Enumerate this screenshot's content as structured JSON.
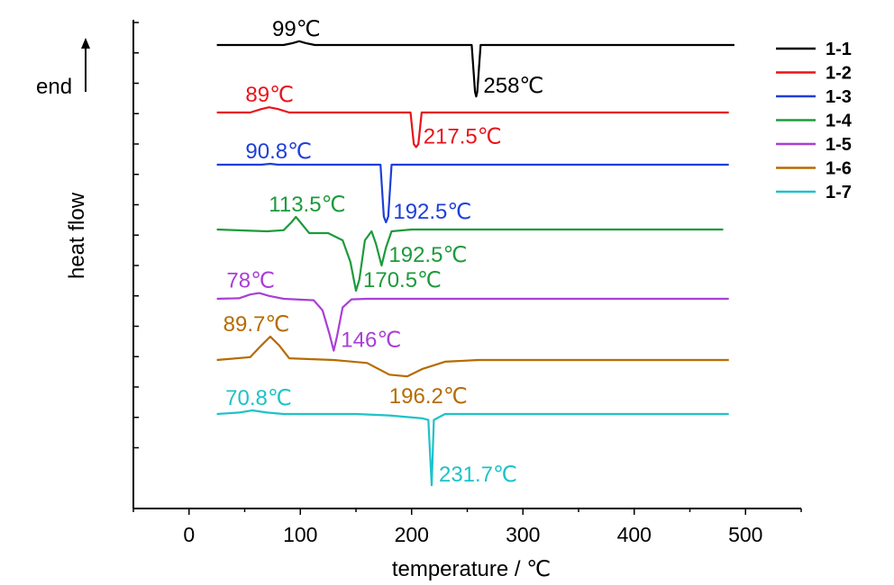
{
  "chart_data": {
    "type": "line",
    "title": "",
    "xlabel": "temperature / ℃",
    "ylabel": "heat flow",
    "direction_label": "end",
    "xlim": [
      -50,
      550
    ],
    "x_ticks": [
      0,
      100,
      200,
      300,
      400,
      500
    ],
    "grid": false,
    "legend_position": "top-right",
    "series": [
      {
        "name": "1-1",
        "color": "#000000",
        "points": [
          [
            25,
            0
          ],
          [
            85,
            0
          ],
          [
            93,
            0.04
          ],
          [
            99,
            0.08
          ],
          [
            105,
            0.04
          ],
          [
            113,
            0
          ],
          [
            254,
            0
          ],
          [
            257,
            -1.0
          ],
          [
            258,
            -1.1
          ],
          [
            259,
            -1.0
          ],
          [
            262,
            0
          ],
          [
            490,
            0
          ]
        ],
        "annotations": [
          {
            "text": "99℃",
            "x": 99,
            "y": 0.08,
            "pos": "above"
          },
          {
            "text": "258℃",
            "x": 258,
            "y": -1.1,
            "pos": "right"
          }
        ]
      },
      {
        "name": "1-2",
        "color": "#e8141b",
        "points": [
          [
            25,
            0
          ],
          [
            55,
            0
          ],
          [
            65,
            0.12
          ],
          [
            72,
            0.18
          ],
          [
            80,
            0.12
          ],
          [
            90,
            0
          ],
          [
            199,
            0
          ],
          [
            202,
            -1.1
          ],
          [
            204,
            -1.2
          ],
          [
            206,
            -1.1
          ],
          [
            209,
            0
          ],
          [
            485,
            0
          ]
        ],
        "annotations": [
          {
            "text": "89℃",
            "x": 75,
            "y": 0.18,
            "pos": "above"
          },
          {
            "text": "217.5℃",
            "x": 204,
            "y": -1.2,
            "pos": "right"
          }
        ]
      },
      {
        "name": "1-3",
        "color": "#1f3fd8",
        "points": [
          [
            25,
            0
          ],
          [
            65,
            0
          ],
          [
            73,
            0.03
          ],
          [
            80,
            0
          ],
          [
            172,
            0
          ],
          [
            175,
            -1.8
          ],
          [
            177,
            -2.0
          ],
          [
            179,
            -1.8
          ],
          [
            182,
            0
          ],
          [
            485,
            0
          ]
        ],
        "annotations": [
          {
            "text": "90.8℃",
            "x": 75,
            "y": 0.03,
            "pos": "above"
          },
          {
            "text": "192.5℃",
            "x": 177,
            "y": -2.0,
            "pos": "right"
          }
        ]
      },
      {
        "name": "1-4",
        "color": "#1e9a3c",
        "points": [
          [
            25,
            0
          ],
          [
            70,
            -0.05
          ],
          [
            85,
            -0.02
          ],
          [
            92,
            0.2
          ],
          [
            96,
            0.35
          ],
          [
            100,
            0.2
          ],
          [
            108,
            -0.1
          ],
          [
            125,
            -0.1
          ],
          [
            138,
            -0.3
          ],
          [
            145,
            -0.9
          ],
          [
            150,
            -1.7
          ],
          [
            153,
            -1.4
          ],
          [
            158,
            -0.3
          ],
          [
            164,
            -0.05
          ],
          [
            168,
            -0.4
          ],
          [
            173,
            -1.0
          ],
          [
            177,
            -0.5
          ],
          [
            182,
            -0.05
          ],
          [
            200,
            0
          ],
          [
            480,
            0
          ]
        ],
        "annotations": [
          {
            "text": "113.5℃",
            "x": 96,
            "y": 0.35,
            "pos": "above"
          },
          {
            "text": "192.5℃",
            "x": 173,
            "y": -1.0,
            "pos": "right"
          },
          {
            "text": "170.5℃",
            "x": 150,
            "y": -1.7,
            "pos": "right"
          }
        ]
      },
      {
        "name": "1-5",
        "color": "#a83fd6",
        "points": [
          [
            25,
            0
          ],
          [
            45,
            0.02
          ],
          [
            55,
            0.15
          ],
          [
            63,
            0.2
          ],
          [
            72,
            0.1
          ],
          [
            85,
            0
          ],
          [
            112,
            -0.05
          ],
          [
            120,
            -0.4
          ],
          [
            126,
            -1.2
          ],
          [
            130,
            -1.8
          ],
          [
            133,
            -1.3
          ],
          [
            138,
            -0.3
          ],
          [
            146,
            -0.02
          ],
          [
            160,
            0
          ],
          [
            485,
            0
          ]
        ],
        "annotations": [
          {
            "text": "78℃",
            "x": 58,
            "y": 0.2,
            "pos": "above"
          },
          {
            "text": "146℃",
            "x": 130,
            "y": -1.8,
            "pos": "right"
          }
        ]
      },
      {
        "name": "1-6",
        "color": "#b66b00",
        "points": [
          [
            25,
            0
          ],
          [
            55,
            0.05
          ],
          [
            65,
            0.25
          ],
          [
            73,
            0.4
          ],
          [
            81,
            0.25
          ],
          [
            90,
            0.03
          ],
          [
            130,
            0
          ],
          [
            160,
            -0.05
          ],
          [
            180,
            -0.25
          ],
          [
            196,
            -0.28
          ],
          [
            210,
            -0.15
          ],
          [
            230,
            -0.03
          ],
          [
            260,
            0
          ],
          [
            485,
            0
          ]
        ],
        "annotations": [
          {
            "text": "89.7℃",
            "x": 55,
            "y": 0.4,
            "pos": "above"
          },
          {
            "text": "196.2℃",
            "x": 196,
            "y": -0.28,
            "pos": "below"
          }
        ]
      },
      {
        "name": "1-7",
        "color": "#1ec2c9",
        "points": [
          [
            25,
            0
          ],
          [
            45,
            0.05
          ],
          [
            57,
            0.12
          ],
          [
            70,
            0.05
          ],
          [
            85,
            0
          ],
          [
            150,
            0
          ],
          [
            180,
            -0.05
          ],
          [
            210,
            -0.15
          ],
          [
            215,
            -0.2
          ],
          [
            218,
            -2.4
          ],
          [
            220,
            -0.2
          ],
          [
            230,
            0
          ],
          [
            485,
            0
          ]
        ],
        "annotations": [
          {
            "text": "70.8℃",
            "x": 57,
            "y": 0.12,
            "pos": "above"
          },
          {
            "text": "231.7℃",
            "x": 218,
            "y": -2.4,
            "pos": "right"
          }
        ]
      }
    ]
  }
}
